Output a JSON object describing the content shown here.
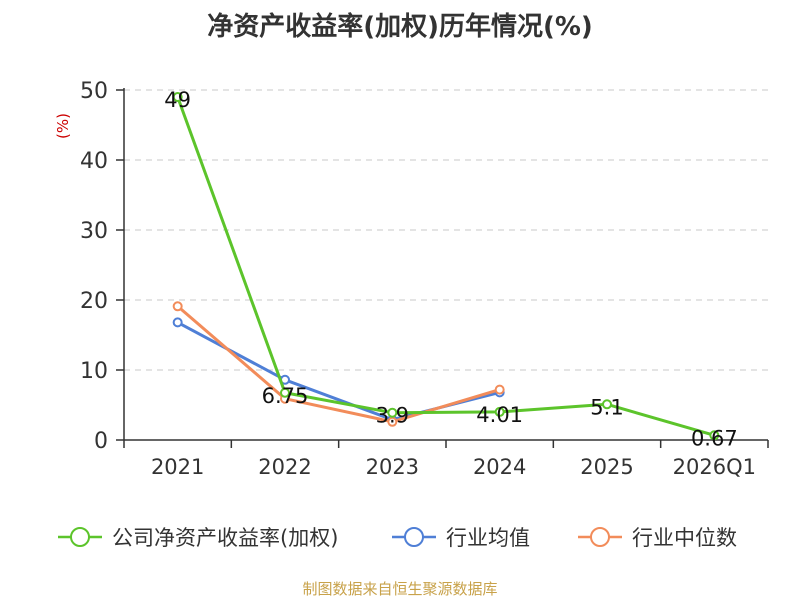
{
  "chart_data": {
    "type": "line",
    "title": "净资产收益率(加权)历年情况(%)",
    "ylabel": "(%)",
    "xlabel": "",
    "categories": [
      "2021",
      "2022",
      "2023",
      "2024",
      "2025",
      "2026Q1"
    ],
    "ylim": [
      0,
      50
    ],
    "yticks": [
      0,
      10,
      20,
      30,
      40,
      50
    ],
    "grid": true,
    "legend_position": "bottom",
    "series": [
      {
        "name": "公司净资产收益率(加权)",
        "color": "#5cc42b",
        "values": [
          49,
          6.75,
          3.9,
          4.01,
          5.1,
          0.67
        ],
        "labels": [
          "49",
          "6.75",
          "3.9",
          "4.01",
          "5.1",
          "0.67"
        ]
      },
      {
        "name": "行业均值",
        "color": "#4f7fd6",
        "values": [
          16.8,
          8.6,
          2.9,
          6.8,
          null,
          null
        ]
      },
      {
        "name": "行业中位数",
        "color": "#f28c5a",
        "values": [
          19.1,
          5.9,
          2.6,
          7.2,
          null,
          null
        ]
      }
    ]
  },
  "footer": "制图数据来自恒生聚源数据库"
}
